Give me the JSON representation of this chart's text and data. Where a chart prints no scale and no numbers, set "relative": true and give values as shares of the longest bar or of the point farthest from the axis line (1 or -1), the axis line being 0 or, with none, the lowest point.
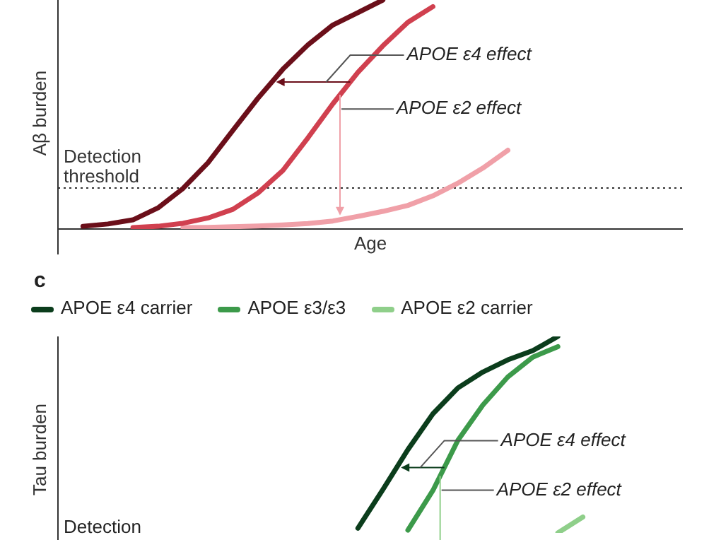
{
  "chart_data": [
    {
      "type": "line",
      "relative": true,
      "xlabel": "Age",
      "ylabel": "Aβ burden",
      "legend": false,
      "marker": "none",
      "line_style": "solid",
      "categories": [
        null,
        null,
        null,
        null,
        null,
        null,
        null,
        null,
        null,
        null,
        null,
        null,
        null,
        null,
        null,
        null,
        null,
        null,
        null,
        null,
        null,
        null,
        null,
        null,
        null,
        null
      ],
      "series": [
        {
          "color": "#6b0f1a",
          "values": [
            null,
            0.012,
            0.022,
            0.04,
            0.092,
            0.177,
            0.289,
            0.431,
            0.571,
            0.698,
            0.804,
            0.891,
            0.945,
            1,
            null,
            null,
            null,
            null,
            null,
            null,
            null,
            null,
            null,
            null,
            null,
            null
          ]
        },
        {
          "color": "#d0404f",
          "values": [
            null,
            null,
            null,
            0.006,
            0.012,
            0.025,
            0.048,
            0.086,
            0.157,
            0.256,
            0.398,
            0.547,
            0.684,
            0.8,
            0.903,
            0.971,
            null,
            null,
            null,
            null,
            null,
            null,
            null,
            null,
            null,
            null
          ]
        },
        {
          "color": "#f0a0a8",
          "values": [
            null,
            null,
            null,
            null,
            null,
            0.006,
            0.007,
            0.01,
            0.013,
            0.018,
            0.024,
            0.035,
            0.055,
            0.077,
            0.103,
            0.145,
            0.2,
            0.266,
            0.344,
            null,
            null,
            null,
            null,
            null,
            null,
            null
          ]
        }
      ],
      "ref_lines": [
        {
          "axis": "y",
          "value": 0.179,
          "label": "Detection threshold",
          "line_style": "dotted",
          "color": "#333333"
        }
      ],
      "annotations": [
        "APOE ε4 effect",
        "APOE ε2 effect"
      ]
    },
    {
      "type": "line",
      "relative": true,
      "title": "c",
      "ylabel": "Tau burden",
      "legend": "top left",
      "marker": "none",
      "line_style": "solid",
      "categories": [
        null,
        null,
        null,
        null,
        null,
        null,
        null,
        null,
        null,
        null,
        null,
        null,
        null,
        null,
        null,
        null,
        null,
        null,
        null,
        null,
        null,
        null,
        null,
        null,
        null,
        null
      ],
      "series": [
        {
          "name": "APOE ε4 carrier",
          "color": "#0b3d1c",
          "values": [
            null,
            null,
            null,
            null,
            null,
            null,
            null,
            null,
            null,
            null,
            null,
            null,
            0.024,
            0.221,
            0.424,
            0.606,
            0.738,
            0.819,
            0.881,
            0.928,
            1,
            null,
            null,
            null,
            null,
            null
          ]
        },
        {
          "name": "APOE ε3/ε3",
          "color": "#3c9a4a",
          "values": [
            null,
            null,
            null,
            null,
            null,
            null,
            null,
            null,
            null,
            null,
            null,
            null,
            null,
            null,
            0.014,
            0.216,
            0.471,
            0.651,
            0.794,
            0.895,
            0.948,
            null,
            null,
            null,
            null,
            null
          ]
        },
        {
          "name": "APOE ε2 carrier",
          "color": "#8fcf8a",
          "values": [
            null,
            null,
            null,
            null,
            null,
            null,
            null,
            null,
            null,
            null,
            null,
            null,
            null,
            null,
            null,
            null,
            null,
            null,
            null,
            null,
            0,
            0.081,
            null,
            null,
            null,
            null
          ]
        }
      ],
      "annotations": [
        "APOE ε4 effect",
        "APOE ε2 effect",
        "Detection"
      ]
    }
  ]
}
